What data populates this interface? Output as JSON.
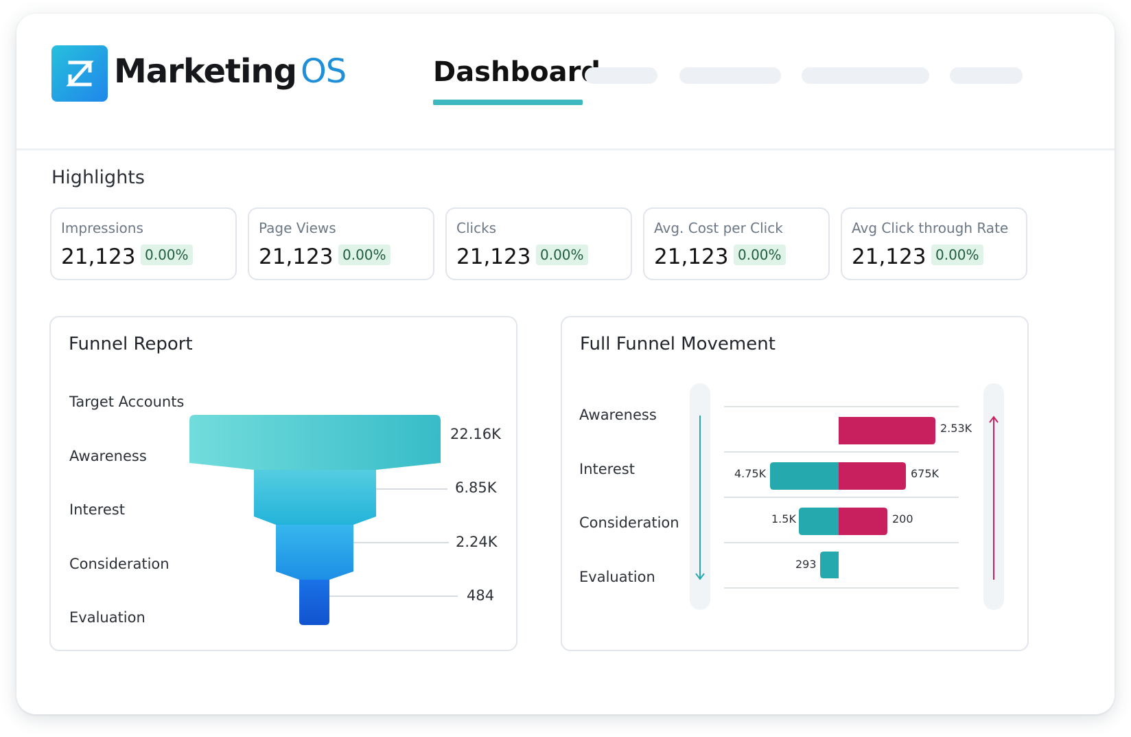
{
  "app": {
    "name_main": "Marketing",
    "name_suffix": "OS",
    "logo_glyph": "Z"
  },
  "nav": {
    "active_tab": "Dashboard"
  },
  "highlights": {
    "title": "Highlights",
    "cards": [
      {
        "label": "Impressions",
        "value": "21,123",
        "change": "0.00%"
      },
      {
        "label": "Page Views",
        "value": "21,123",
        "change": "0.00%"
      },
      {
        "label": "Clicks",
        "value": "21,123",
        "change": "0.00%"
      },
      {
        "label": "Avg. Cost per Click",
        "value": "21,123",
        "change": "0.00%"
      },
      {
        "label": "Avg Click through Rate",
        "value": "21,123",
        "change": "0.00%"
      }
    ]
  },
  "funnel_report": {
    "title": "Funnel Report",
    "stages": [
      "Target Accounts",
      "Awareness",
      "Interest",
      "Consideration",
      "Evaluation"
    ],
    "values": [
      "22.16K",
      "6.85K",
      "2.24K",
      "484"
    ]
  },
  "full_funnel": {
    "title": "Full Funnel Movement",
    "stages": [
      "Awareness",
      "Interest",
      "Consideration",
      "Evaluation"
    ],
    "rows": [
      {
        "left": "",
        "right": "2.53K"
      },
      {
        "left": "4.75K",
        "right": "675K"
      },
      {
        "left": "1.5K",
        "right": "200"
      },
      {
        "left": "293",
        "right": ""
      }
    ]
  },
  "colors": {
    "accent": "#3db8c0",
    "forward": "#26a9ae",
    "backward": "#c8205e",
    "badge_bg": "#dff3e8"
  }
}
